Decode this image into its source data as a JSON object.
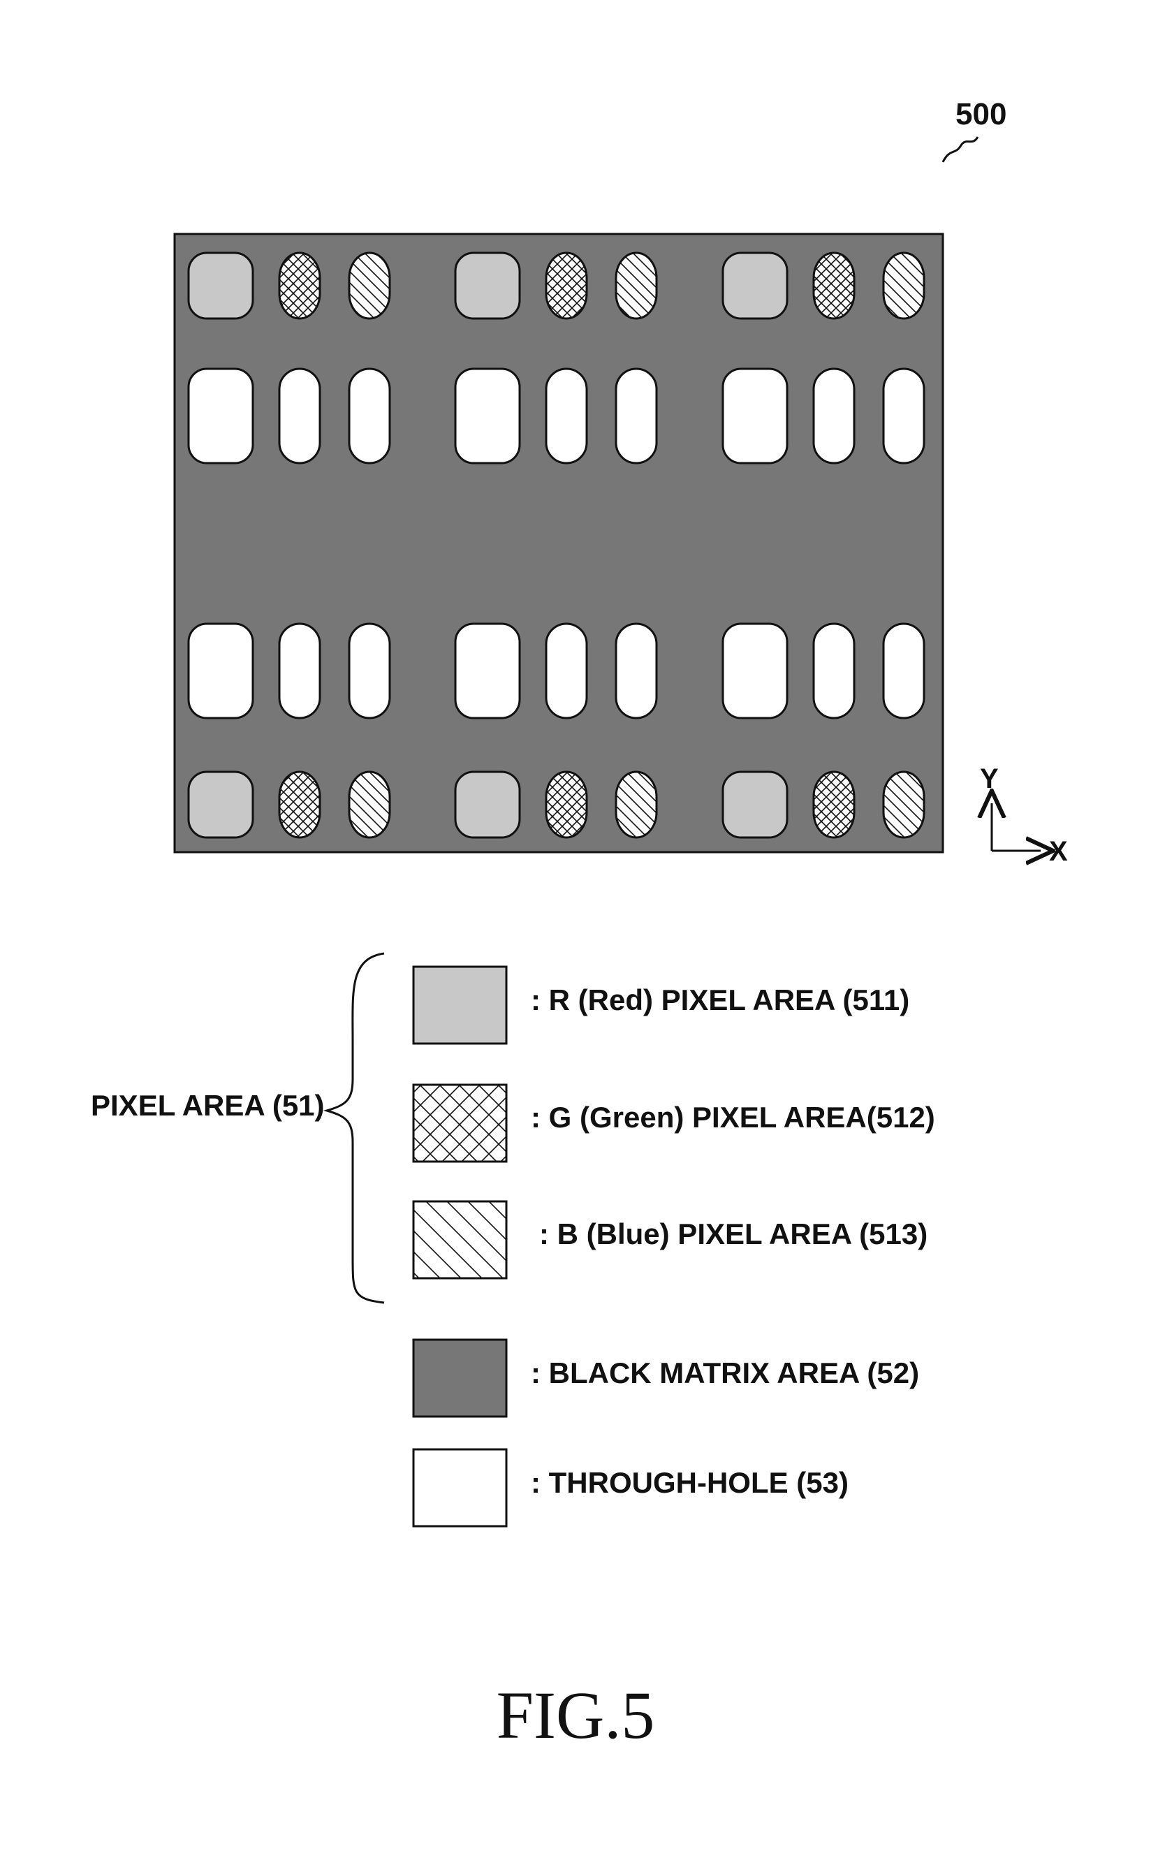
{
  "figure": {
    "reference_numeral": "500",
    "caption": "FIG.5"
  },
  "axes": {
    "y_label": "Y",
    "x_label": "X"
  },
  "grid": {
    "columns_per_group": [
      "R",
      "G",
      "B"
    ],
    "groups": 3,
    "rows": [
      "colored",
      "through-hole",
      "through-hole",
      "colored"
    ]
  },
  "legend": {
    "group_label": "PIXEL AREA (51)",
    "items": [
      {
        "key": "red",
        "label": ": R (Red) PIXEL AREA (511)"
      },
      {
        "key": "green",
        "label": ": G (Green) PIXEL AREA(512)"
      },
      {
        "key": "blue",
        "label": ": B (Blue) PIXEL AREA (513)"
      },
      {
        "key": "black-matrix",
        "label": ": BLACK MATRIX AREA (52)"
      },
      {
        "key": "through-hole",
        "label": ": THROUGH-HOLE (53)"
      }
    ]
  },
  "colors": {
    "black_matrix": "#777777",
    "red_pixel": "#c8c8c8",
    "through_hole": "#ffffff",
    "line": "#111111"
  }
}
